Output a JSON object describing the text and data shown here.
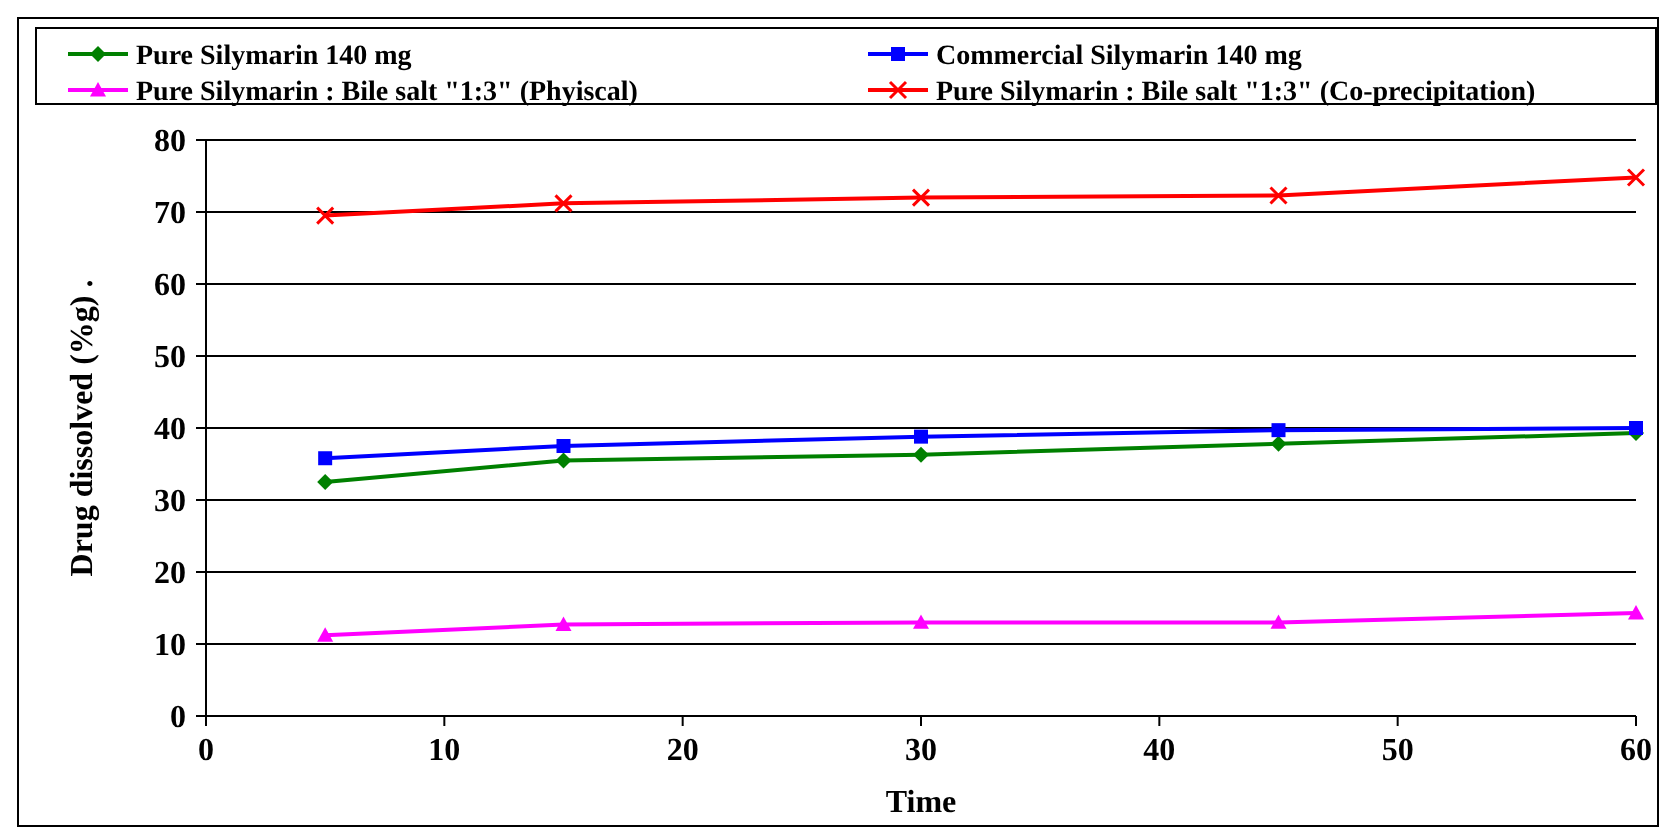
{
  "chart_data": {
    "type": "line",
    "xlabel": "Time",
    "ylabel": "Drug dissolved (%g)  .",
    "x": [
      5,
      15,
      30,
      45,
      60
    ],
    "xlim": [
      0,
      60
    ],
    "xticks": [
      0,
      10,
      20,
      30,
      40,
      50,
      60
    ],
    "ylim": [
      0,
      80
    ],
    "yticks": [
      0,
      10,
      20,
      30,
      40,
      50,
      60,
      70,
      80
    ],
    "grid": "y",
    "legend": "top",
    "series": [
      {
        "name": "Pure Silymarin  140 mg",
        "color": "#008000",
        "marker": "diamond",
        "values": [
          32.5,
          35.5,
          36.3,
          37.8,
          39.3
        ]
      },
      {
        "name": "Commercial Silymarin 140 mg",
        "color": "#0000ff",
        "marker": "square",
        "values": [
          35.8,
          37.5,
          38.8,
          39.7,
          40
        ]
      },
      {
        "name": "Pure Silymarin : Bile salt \"1:3\" (Phyiscal)",
        "color": "#ff00ff",
        "marker": "triangle",
        "values": [
          11.2,
          12.7,
          13,
          13,
          14.3
        ]
      },
      {
        "name": "Pure Silymarin : Bile salt \"1:3\" (Co-precipitation)",
        "color": "#ff0000",
        "marker": "cross",
        "values": [
          69.5,
          71.2,
          72,
          72.3,
          74.8
        ]
      }
    ]
  }
}
